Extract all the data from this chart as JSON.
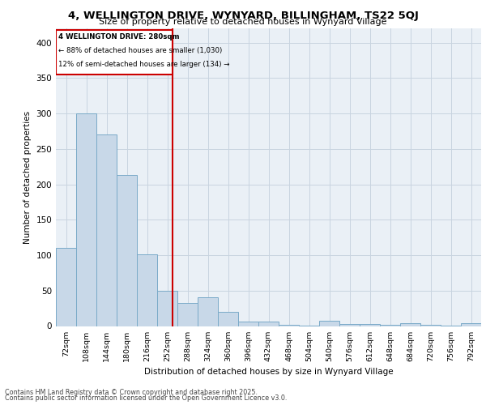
{
  "title1": "4, WELLINGTON DRIVE, WYNYARD, BILLINGHAM, TS22 5QJ",
  "title2": "Size of property relative to detached houses in Wynyard Village",
  "xlabel": "Distribution of detached houses by size in Wynyard Village",
  "ylabel": "Number of detached properties",
  "bar_color": "#c8d8e8",
  "bar_edge_color": "#7aaac8",
  "vline_color": "#cc0000",
  "vline_x": 280,
  "annotation_title": "4 WELLINGTON DRIVE: 280sqm",
  "annotation_line1": "← 88% of detached houses are smaller (1,030)",
  "annotation_line2": "12% of semi-detached houses are larger (134) →",
  "bins_left": [
    72,
    108,
    144,
    180,
    216,
    252,
    288,
    324,
    360,
    396,
    432,
    468,
    504,
    540,
    576,
    612,
    648,
    684,
    720,
    756,
    792
  ],
  "bin_width": 36,
  "bar_heights": [
    110,
    300,
    270,
    213,
    101,
    50,
    33,
    41,
    20,
    6,
    6,
    2,
    1,
    7,
    3,
    3,
    2,
    4,
    2,
    1,
    4
  ],
  "ylim": [
    0,
    420
  ],
  "yticks": [
    0,
    50,
    100,
    150,
    200,
    250,
    300,
    350,
    400
  ],
  "footer1": "Contains HM Land Registry data © Crown copyright and database right 2025.",
  "footer2": "Contains public sector information licensed under the Open Government Licence v3.0.",
  "background_color": "#eaf0f6",
  "grid_color": "#c8d4e0"
}
